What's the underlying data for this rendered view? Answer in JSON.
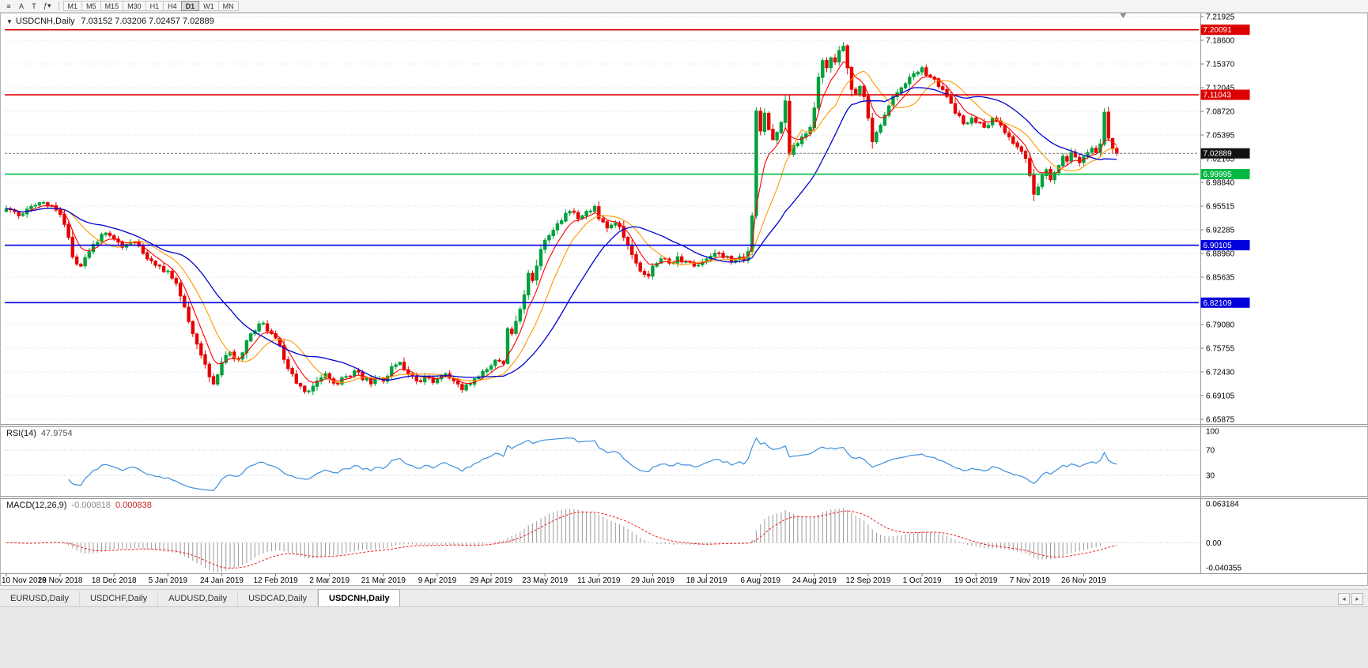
{
  "toolbar": {
    "icons": [
      {
        "name": "chart-menu-icon",
        "glyph": "≡"
      },
      {
        "name": "text-tool-button",
        "glyph": "A"
      },
      {
        "name": "crosshair-tool-button",
        "glyph": "T"
      },
      {
        "name": "indicators-dropdown-button",
        "glyph": "ƒ▾"
      }
    ],
    "timeframes": [
      "M1",
      "M5",
      "M15",
      "M30",
      "H1",
      "H4",
      "D1",
      "W1",
      "MN"
    ],
    "active_timeframe": "D1"
  },
  "chart": {
    "dropdown_glyph": "▼",
    "symbol_label": "USDCNH,Daily",
    "ohlc_text": "7.03152 7.03206 7.02457 7.02889"
  },
  "rsi": {
    "label": "RSI(14)",
    "value_text": "47.9754",
    "period": 14,
    "levels": [
      "100",
      "70",
      "30"
    ],
    "level_lines": [
      70,
      30
    ],
    "line_color": "#3E8EDE"
  },
  "macd": {
    "label": "MACD(12,26,9)",
    "value1": "-0.000818",
    "value2": "0.000838",
    "fast": 12,
    "slow": 26,
    "signal_period": 9,
    "axis_labels": [
      "0.063184",
      "0.00",
      "-0.040355"
    ],
    "scale_max": 0.063184,
    "scale_min": -0.040355,
    "histogram_color": "#9a9a9a",
    "signal_color": "#ee2222"
  },
  "tabs": [
    {
      "label": "EURUSD,Daily",
      "active": false
    },
    {
      "label": "USDCHF,Daily",
      "active": false
    },
    {
      "label": "AUDUSD,Daily",
      "active": false
    },
    {
      "label": "USDCAD,Daily",
      "active": false
    },
    {
      "label": "USDCNH,Daily",
      "active": true
    }
  ],
  "tab_scroll": {
    "left": "◂",
    "right": "▸"
  },
  "chart_data": {
    "type": "candlestick",
    "symbol": "USDCNH",
    "timeframe": "Daily",
    "ohlc_current": {
      "open": 7.03152,
      "high": 7.03206,
      "low": 7.02457,
      "close": 7.02889
    },
    "up_color": "#00A03C",
    "down_color": "#E60000",
    "grid_color": "#e2e2e2",
    "y_axis_ticks": [
      "7.21925",
      "7.18600",
      "7.15370",
      "7.12045",
      "7.08720",
      "7.05395",
      "7.02165",
      "6.98840",
      "6.95515",
      "6.92285",
      "6.88960",
      "6.85635",
      "6.82310",
      "6.79080",
      "6.75755",
      "6.72430",
      "6.69105",
      "6.65875"
    ],
    "price_scale": {
      "top_tick": 7.21925,
      "bottom_tick": 6.65875
    },
    "x_axis_labels": [
      "10 Nov 2018",
      "29 Nov 2018",
      "18 Dec 2018",
      "5 Jan 2019",
      "24 Jan 2019",
      "12 Feb 2019",
      "2 Mar 2019",
      "21 Mar 2019",
      "9 Apr 2019",
      "29 Apr 2019",
      "23 May 2019",
      "11 Jun 2019",
      "29 Jun 2019",
      "18 Jul 2019",
      "6 Aug 2019",
      "24 Aug 2019",
      "12 Sep 2019",
      "1 Oct 2019",
      "19 Oct 2019",
      "7 Nov 2019",
      "26 Nov 2019"
    ],
    "x_label_candle_interval": 13,
    "candle_count": 269,
    "hlines": [
      {
        "value": 7.20091,
        "color": "#dd0000",
        "style": "solid"
      },
      {
        "value": 7.11043,
        "color": "#dd0000",
        "style": "solid"
      },
      {
        "value": 6.99995,
        "color": "#00b944",
        "style": "solid"
      },
      {
        "value": 6.90105,
        "color": "#0000dd",
        "style": "solid"
      },
      {
        "value": 6.82109,
        "color": "#0000dd",
        "style": "solid"
      }
    ],
    "bid_line": {
      "value": 7.02889,
      "color": "#111111"
    },
    "moving_averages": [
      {
        "period": 6,
        "method": "ema",
        "color": "#ff0000",
        "width": 1.1
      },
      {
        "period": 12,
        "method": "sma",
        "color": "#ff9900",
        "width": 1.1
      },
      {
        "period": 24,
        "method": "sma",
        "color": "#0000cc",
        "width": 1.3
      }
    ],
    "close_keyframes": [
      [
        0,
        6.952
      ],
      [
        3,
        6.942
      ],
      [
        6,
        6.955
      ],
      [
        9,
        6.96
      ],
      [
        12,
        6.95
      ],
      [
        13,
        6.944
      ],
      [
        14,
        6.93
      ],
      [
        15,
        6.912
      ],
      [
        16,
        6.885
      ],
      [
        18,
        6.872
      ],
      [
        20,
        6.892
      ],
      [
        22,
        6.905
      ],
      [
        24,
        6.918
      ],
      [
        26,
        6.91
      ],
      [
        28,
        6.898
      ],
      [
        31,
        6.905
      ],
      [
        34,
        6.882
      ],
      [
        37,
        6.872
      ],
      [
        39,
        6.865
      ],
      [
        41,
        6.848
      ],
      [
        43,
        6.815
      ],
      [
        45,
        6.778
      ],
      [
        47,
        6.748
      ],
      [
        49,
        6.718
      ],
      [
        50,
        6.708
      ],
      [
        52,
        6.738
      ],
      [
        54,
        6.752
      ],
      [
        56,
        6.742
      ],
      [
        58,
        6.768
      ],
      [
        60,
        6.782
      ],
      [
        62,
        6.792
      ],
      [
        64,
        6.778
      ],
      [
        65,
        6.772
      ],
      [
        67,
        6.742
      ],
      [
        69,
        6.722
      ],
      [
        71,
        6.705
      ],
      [
        73,
        6.698
      ],
      [
        75,
        6.712
      ],
      [
        77,
        6.722
      ],
      [
        78,
        6.715
      ],
      [
        80,
        6.708
      ],
      [
        82,
        6.718
      ],
      [
        84,
        6.726
      ],
      [
        86,
        6.714
      ],
      [
        88,
        6.708
      ],
      [
        90,
        6.716
      ],
      [
        91,
        6.712
      ],
      [
        93,
        6.732
      ],
      [
        95,
        6.738
      ],
      [
        97,
        6.722
      ],
      [
        99,
        6.712
      ],
      [
        101,
        6.718
      ],
      [
        103,
        6.71
      ],
      [
        104,
        6.715
      ],
      [
        106,
        6.722
      ],
      [
        108,
        6.712
      ],
      [
        110,
        6.7
      ],
      [
        112,
        6.708
      ],
      [
        114,
        6.718
      ],
      [
        116,
        6.728
      ],
      [
        117,
        6.733
      ],
      [
        119,
        6.74
      ],
      [
        120,
        6.736
      ],
      [
        121,
        6.785
      ],
      [
        122,
        6.778
      ],
      [
        123,
        6.795
      ],
      [
        124,
        6.812
      ],
      [
        125,
        6.832
      ],
      [
        126,
        6.862
      ],
      [
        127,
        6.852
      ],
      [
        128,
        6.872
      ],
      [
        129,
        6.895
      ],
      [
        130,
        6.908
      ],
      [
        132,
        6.922
      ],
      [
        134,
        6.935
      ],
      [
        136,
        6.948
      ],
      [
        138,
        6.938
      ],
      [
        140,
        6.948
      ],
      [
        142,
        6.955
      ],
      [
        143,
        6.938
      ],
      [
        145,
        6.925
      ],
      [
        147,
        6.932
      ],
      [
        149,
        6.912
      ],
      [
        151,
        6.888
      ],
      [
        153,
        6.865
      ],
      [
        155,
        6.858
      ],
      [
        156,
        6.872
      ],
      [
        158,
        6.882
      ],
      [
        160,
        6.876
      ],
      [
        162,
        6.885
      ],
      [
        164,
        6.878
      ],
      [
        166,
        6.872
      ],
      [
        168,
        6.878
      ],
      [
        169,
        6.882
      ],
      [
        171,
        6.89
      ],
      [
        173,
        6.884
      ],
      [
        175,
        6.878
      ],
      [
        177,
        6.885
      ],
      [
        178,
        6.88
      ],
      [
        179,
        6.892
      ],
      [
        180,
        6.942
      ],
      [
        181,
        7.088
      ],
      [
        182,
        7.06
      ],
      [
        183,
        7.085
      ],
      [
        184,
        7.062
      ],
      [
        185,
        7.048
      ],
      [
        186,
        7.058
      ],
      [
        187,
        7.072
      ],
      [
        188,
        7.102
      ],
      [
        189,
        7.028
      ],
      [
        190,
        7.04
      ],
      [
        192,
        7.052
      ],
      [
        194,
        7.065
      ],
      [
        195,
        7.092
      ],
      [
        196,
        7.135
      ],
      [
        197,
        7.158
      ],
      [
        198,
        7.148
      ],
      [
        199,
        7.162
      ],
      [
        200,
        7.156
      ],
      [
        201,
        7.172
      ],
      [
        202,
        7.178
      ],
      [
        203,
        7.148
      ],
      [
        204,
        7.118
      ],
      [
        205,
        7.112
      ],
      [
        206,
        7.122
      ],
      [
        207,
        7.108
      ],
      [
        208,
        7.078
      ],
      [
        209,
        7.045
      ],
      [
        210,
        7.058
      ],
      [
        211,
        7.068
      ],
      [
        212,
        7.082
      ],
      [
        213,
        7.095
      ],
      [
        214,
        7.108
      ],
      [
        216,
        7.12
      ],
      [
        218,
        7.135
      ],
      [
        220,
        7.142
      ],
      [
        221,
        7.148
      ],
      [
        223,
        7.135
      ],
      [
        225,
        7.122
      ],
      [
        227,
        7.108
      ],
      [
        229,
        7.085
      ],
      [
        231,
        7.07
      ],
      [
        233,
        7.078
      ],
      [
        234,
        7.072
      ],
      [
        236,
        7.065
      ],
      [
        238,
        7.078
      ],
      [
        240,
        7.068
      ],
      [
        242,
        7.052
      ],
      [
        244,
        7.038
      ],
      [
        246,
        7.022
      ],
      [
        247,
        6.998
      ],
      [
        248,
        6.972
      ],
      [
        249,
        6.982
      ],
      [
        250,
        6.998
      ],
      [
        251,
        7.006
      ],
      [
        252,
        6.992
      ],
      [
        253,
        7.002
      ],
      [
        254,
        7.012
      ],
      [
        255,
        7.025
      ],
      [
        256,
        7.018
      ],
      [
        257,
        7.03
      ],
      [
        258,
        7.024
      ],
      [
        259,
        7.016
      ],
      [
        260,
        7.024
      ],
      [
        261,
        7.03
      ],
      [
        262,
        7.036
      ],
      [
        263,
        7.03
      ],
      [
        264,
        7.042
      ],
      [
        265,
        7.086
      ],
      [
        266,
        7.05
      ],
      [
        267,
        7.036
      ],
      [
        268,
        7.02889
      ]
    ]
  }
}
